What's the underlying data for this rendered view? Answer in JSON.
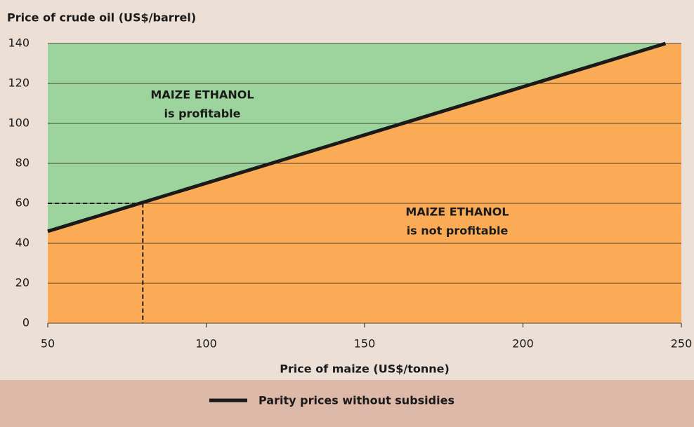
{
  "chart_data": {
    "type": "line",
    "ylabel": "Price of crude oil (US$/barrel)",
    "xlabel": "Price of maize (US$/tonne)",
    "xlim": [
      50,
      250
    ],
    "xticks": [
      50,
      100,
      150,
      200,
      250
    ],
    "ylim": [
      0,
      140
    ],
    "yticks": [
      0,
      20,
      40,
      60,
      80,
      100,
      120,
      140
    ],
    "grid": true,
    "series": [
      {
        "name": "Parity prices without subsidies",
        "color": "#1a1a1a",
        "x": [
          50,
          245
        ],
        "values": [
          46,
          140
        ]
      }
    ],
    "reference_point": {
      "x": 80,
      "y": 60
    },
    "region_colors": {
      "above": "#9dd39c",
      "below": "#fbab56"
    },
    "annotations": [
      [
        "MAIZE ETHANOL",
        "is profitable"
      ],
      [
        "MAIZE ETHANOL",
        "is not profitable"
      ]
    ]
  }
}
